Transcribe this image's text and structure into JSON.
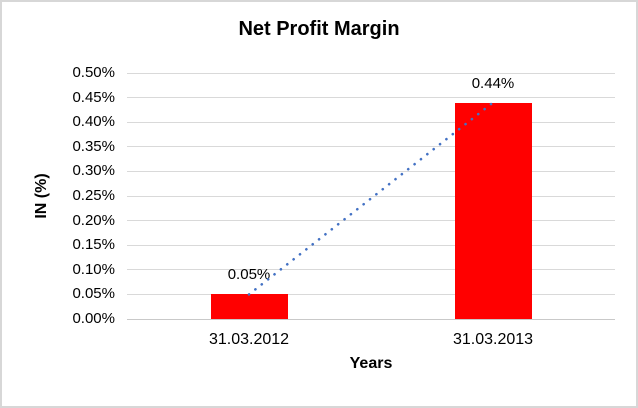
{
  "chart_data": {
    "type": "bar",
    "title": "Net Profit Margin",
    "xlabel": "Years",
    "ylabel": "IN (%)",
    "categories": [
      "31.03.2012",
      "31.03.2013"
    ],
    "values": [
      0.05,
      0.44
    ],
    "data_labels": [
      "0.05%",
      "0.44%"
    ],
    "ylim": [
      0,
      0.5
    ],
    "ytick_step": 0.05,
    "ytick_labels": [
      "0.00%",
      "0.05%",
      "0.10%",
      "0.15%",
      "0.20%",
      "0.25%",
      "0.30%",
      "0.35%",
      "0.40%",
      "0.45%",
      "0.50%"
    ],
    "grid": true,
    "legend": false,
    "trendline": {
      "type": "linear",
      "style": "dotted",
      "color": "#4472C4"
    },
    "colors": {
      "bar": "#FF0000",
      "gridline": "#D9D9D9",
      "axis_line": "#C9C9C9",
      "text": "#000000",
      "border": "#D7D7D7",
      "background": "#FFFFFF"
    }
  }
}
